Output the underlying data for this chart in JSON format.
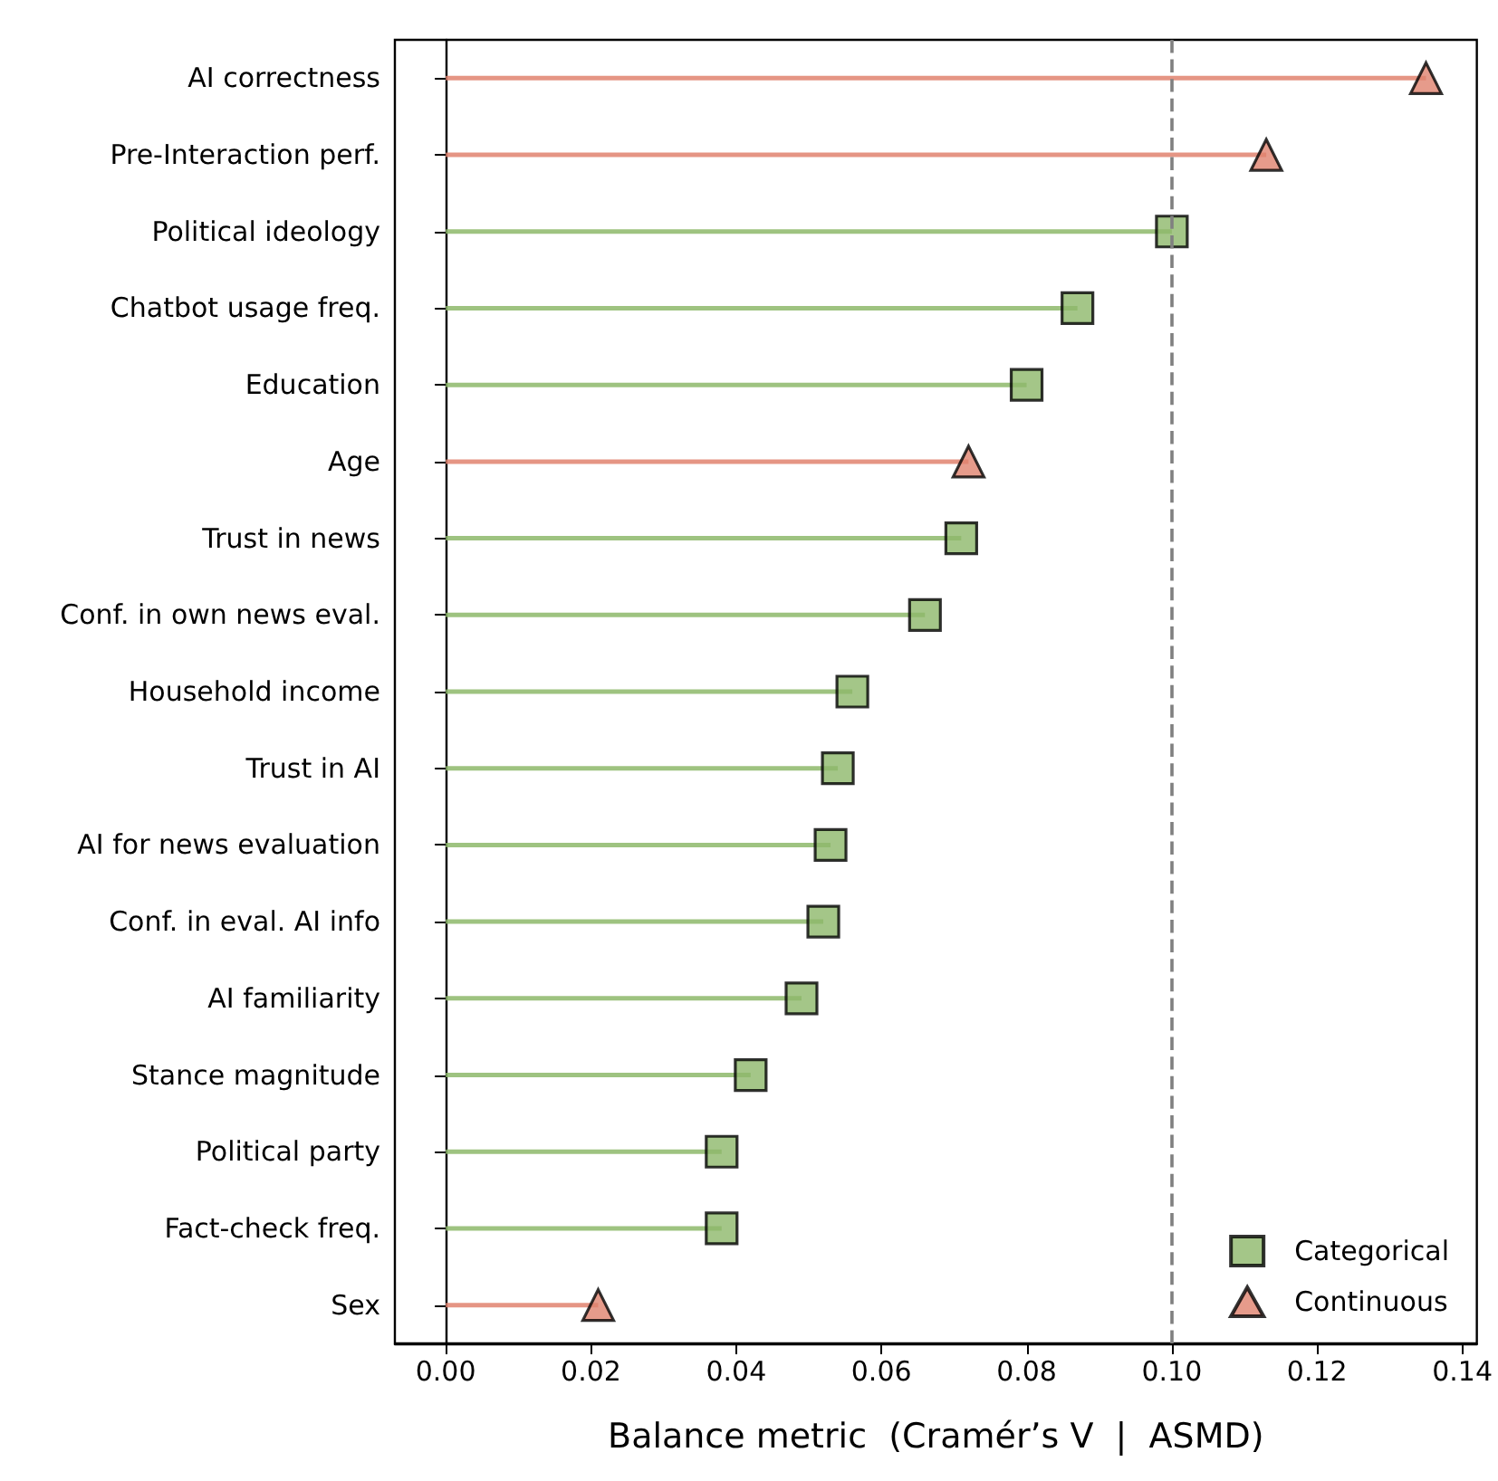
{
  "chart_data": {
    "type": "lollipop",
    "orientation": "horizontal",
    "xlabel": "Balance metric  (Cramér’s V  |  ASMD)",
    "categories": [
      "AI correctness",
      "Pre-Interaction perf.",
      "Political ideology",
      "Chatbot usage freq.",
      "Education",
      "Age",
      "Trust in news",
      "Conf. in own news eval.",
      "Household income",
      "Trust in AI",
      "AI for news evaluation",
      "Conf. in eval. AI info",
      "AI familiarity",
      "Stance magnitude",
      "Political party",
      "Fact-check freq.",
      "Sex"
    ],
    "series": [
      {
        "name": "Categorical",
        "color": "#8db86a",
        "marker": "square",
        "values": [
          null,
          null,
          0.1,
          0.087,
          0.08,
          null,
          0.071,
          0.066,
          0.056,
          0.054,
          0.053,
          0.052,
          0.049,
          0.042,
          0.038,
          0.038,
          null
        ]
      },
      {
        "name": "Continuous",
        "color": "#e0826e",
        "marker": "triangle",
        "values": [
          0.135,
          0.113,
          null,
          null,
          null,
          0.072,
          null,
          null,
          null,
          null,
          null,
          null,
          null,
          null,
          null,
          null,
          0.021
        ]
      }
    ],
    "xlim": [
      -0.007,
      0.142
    ],
    "xticks": [
      {
        "value": 0,
        "label": "0.00"
      },
      {
        "value": 0.02,
        "label": "0.02"
      },
      {
        "value": 0.04,
        "label": "0.04"
      },
      {
        "value": 0.06,
        "label": "0.06"
      },
      {
        "value": 0.08,
        "label": "0.08"
      },
      {
        "value": 0.1,
        "label": "0.10"
      },
      {
        "value": 0.12,
        "label": "0.12"
      },
      {
        "value": 0.14,
        "label": "0.14"
      }
    ],
    "ref_lines": [
      {
        "axis": "x",
        "value": 0.1,
        "color": "#808080",
        "line_style": "dashed"
      }
    ],
    "legend": "bottom right",
    "grid": false
  }
}
